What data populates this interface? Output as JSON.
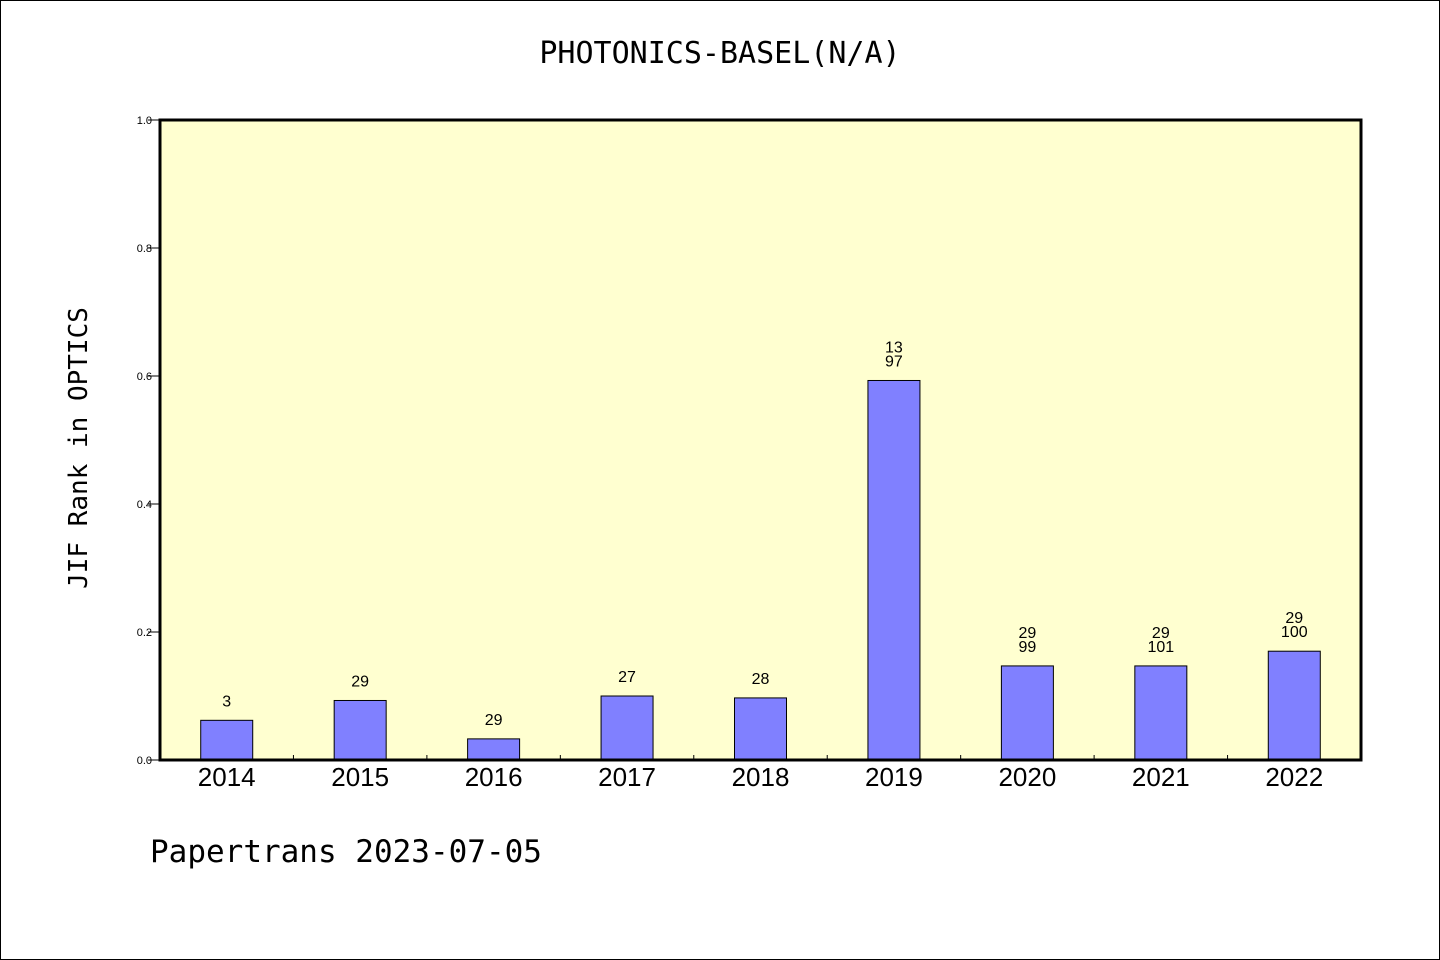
{
  "chart_data": {
    "type": "bar",
    "title": "PHOTONICS-BASEL(N/A)",
    "ylabel": "JIF Rank in OPTICS",
    "xlabel": "",
    "ylim": [
      0,
      1.0
    ],
    "yticks": [
      "0.0",
      "0.2",
      "0.4",
      "0.6",
      "0.8",
      "1.0"
    ],
    "categories": [
      "2014",
      "2015",
      "2016",
      "2017",
      "2018",
      "2019",
      "2020",
      "2021",
      "2022"
    ],
    "values": [
      0.062,
      0.093,
      0.033,
      0.1,
      0.097,
      0.593,
      0.147,
      0.147,
      0.17
    ],
    "labels": [
      [
        "3"
      ],
      [
        "29"
      ],
      [
        "29"
      ],
      [
        "27"
      ],
      [
        "28"
      ],
      [
        "13",
        "97"
      ],
      [
        "29",
        "99"
      ],
      [
        "29",
        "101"
      ],
      [
        "29",
        "100"
      ]
    ],
    "colors": {
      "plot_background": "#ffffd0",
      "bar": "#8080ff"
    },
    "grid": false
  },
  "footer": "Papertrans 2023-07-05"
}
